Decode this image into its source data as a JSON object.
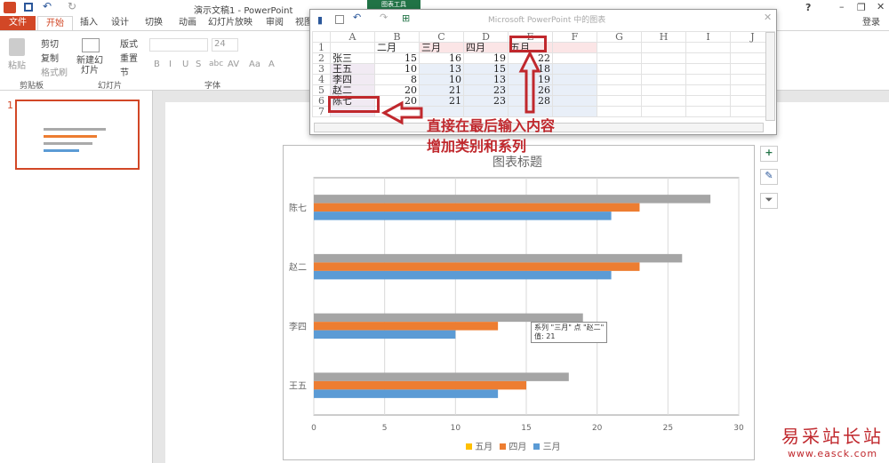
{
  "app": {
    "title": "演示文稿1 - PowerPoint",
    "contextual_tab": "图表工具",
    "login": "登录",
    "window_controls": [
      "?",
      "restore-ribbon",
      "minimize",
      "maximize",
      "close"
    ]
  },
  "tabs": [
    "文件",
    "开始",
    "插入",
    "设计",
    "切换",
    "动画",
    "幻灯片放映",
    "审阅",
    "视图"
  ],
  "ribbon": {
    "paste": "粘贴",
    "cut": "剪切",
    "copy": "复制",
    "format_painter": "格式刷",
    "new_slide": "新建幻灯片",
    "layout": "版式",
    "reset": "重置",
    "section": "节",
    "font_size": "24",
    "groups": [
      "剪贴板",
      "幻灯片",
      "字体"
    ],
    "font_buttons": [
      "B",
      "I",
      "U",
      "S",
      "abc",
      "AV",
      "Aa",
      "A"
    ]
  },
  "thumbnail": {
    "number": "1"
  },
  "sheet": {
    "title": "Microsoft PowerPoint 中的图表",
    "columns": [
      "A",
      "B",
      "C",
      "D",
      "E",
      "F",
      "G",
      "H",
      "I",
      "J"
    ],
    "rows": [
      [
        "",
        "二月",
        "三月",
        "四月",
        "五月"
      ],
      [
        "张三",
        "15",
        "16",
        "19",
        "22"
      ],
      [
        "王五",
        "10",
        "13",
        "15",
        "18"
      ],
      [
        "李四",
        "8",
        "10",
        "13",
        "19"
      ],
      [
        "赵二",
        "20",
        "21",
        "23",
        "26"
      ],
      [
        "陈七",
        "20",
        "21",
        "23",
        "28"
      ],
      [
        "",
        "",
        "",
        "",
        ""
      ]
    ]
  },
  "annotations": {
    "line1": "直接在最后输入内容",
    "line2": "增加类别和系列"
  },
  "chart_data": {
    "type": "bar",
    "orientation": "horizontal",
    "title": "图表标题",
    "categories": [
      "王五",
      "李四",
      "赵二",
      "陈七"
    ],
    "series": [
      {
        "name": "三月",
        "values": [
          13,
          10,
          21,
          21
        ],
        "color": "#5b9bd5"
      },
      {
        "name": "四月",
        "values": [
          15,
          13,
          23,
          23
        ],
        "color": "#ed7d31"
      },
      {
        "name": "五月",
        "values": [
          18,
          19,
          26,
          28
        ],
        "color": "#a5a5a5"
      }
    ],
    "xlim": [
      0,
      30
    ],
    "xticks": [
      0,
      5,
      10,
      15,
      20,
      25,
      30
    ],
    "grid": true,
    "legend": "bottom",
    "legend_order": [
      "五月",
      "四月",
      "三月"
    ]
  },
  "tooltip": {
    "line1": "系列 \"三月\" 点 \"赵二\"",
    "line2": "值: 21"
  },
  "watermark": {
    "text": "易采站长站",
    "url": "www.easck.com"
  }
}
